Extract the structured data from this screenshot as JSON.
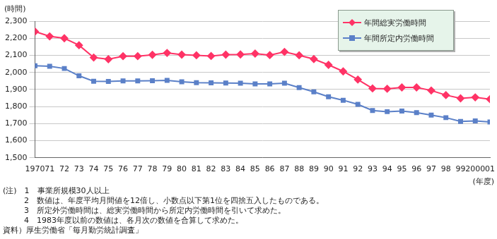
{
  "chart_data": {
    "type": "line",
    "y_label": "(時間)",
    "x_label": "(年度)",
    "categories": [
      "1970",
      "71",
      "72",
      "73",
      "74",
      "75",
      "76",
      "77",
      "78",
      "79",
      "80",
      "81",
      "82",
      "83",
      "84",
      "85",
      "86",
      "87",
      "88",
      "89",
      "90",
      "91",
      "92",
      "93",
      "94",
      "95",
      "96",
      "97",
      "98",
      "99",
      "2000",
      "01"
    ],
    "series": [
      {
        "name": "年間総実労働時間",
        "color": "#ff3366",
        "marker": "diamond",
        "line_style": "solid",
        "values": [
          2239,
          2211,
          2200,
          2159,
          2087,
          2077,
          2095,
          2095,
          2103,
          2114,
          2104,
          2100,
          2096,
          2104,
          2105,
          2110,
          2101,
          2120,
          2100,
          2078,
          2044,
          2006,
          1958,
          1906,
          1904,
          1912,
          1912,
          1894,
          1867,
          1848,
          1854,
          1843
        ]
      },
      {
        "name": "年間所定内労働時間",
        "color": "#5b80c8",
        "marker": "square",
        "line_style": "solid",
        "values": [
          2039,
          2036,
          2023,
          1980,
          1948,
          1947,
          1950,
          1950,
          1951,
          1953,
          1945,
          1940,
          1939,
          1938,
          1937,
          1933,
          1933,
          1937,
          1911,
          1886,
          1857,
          1837,
          1813,
          1777,
          1770,
          1774,
          1764,
          1750,
          1735,
          1713,
          1716,
          1710
        ]
      }
    ],
    "ylim": [
      1500,
      2300
    ],
    "yticks": [
      {
        "value": 1500,
        "label": "1,500"
      },
      {
        "value": 1600,
        "label": "1,600"
      },
      {
        "value": 1700,
        "label": "1,700"
      },
      {
        "value": 1800,
        "label": "1,800"
      },
      {
        "value": 1900,
        "label": "1,900"
      },
      {
        "value": 2000,
        "label": "2,000"
      },
      {
        "value": 2100,
        "label": "2,100"
      },
      {
        "value": 2200,
        "label": "2,200"
      },
      {
        "value": 2300,
        "label": "2,300"
      }
    ],
    "grid": true,
    "legend": "upper right",
    "annotations": [
      "(注)　1　事業所規模30人以上",
      "2　数値は、年度平均月間値を12倍し、小数点以下第1位を四捨五入したものである。",
      "3　所定外労働時間は、総実労働時間から所定内労働時間を引いて求めた。",
      "4　1983年度以前の数値は、各月次の数値を合算して求めた。",
      "資料）厚生労働省「毎月勤労統計調査」"
    ]
  }
}
